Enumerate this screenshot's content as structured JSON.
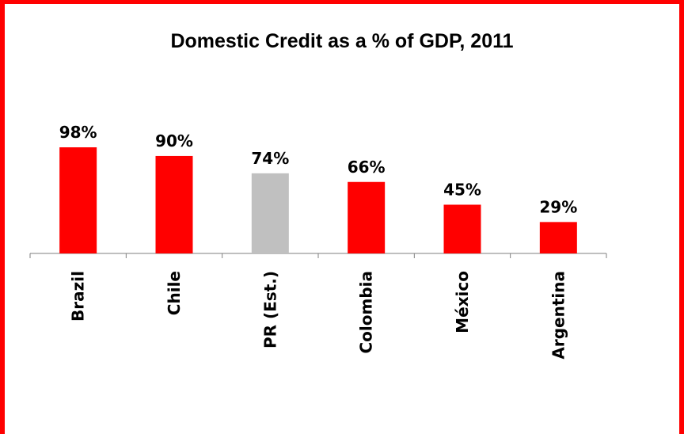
{
  "chart_data": {
    "type": "bar",
    "title": "Domestic Credit as a % of GDP, 2011",
    "xlabel": "",
    "ylabel": "",
    "categories": [
      "Brazil",
      "Chile",
      "PR (Est.)",
      "Colombia",
      "México",
      "Argentina"
    ],
    "values": [
      98,
      90,
      74,
      66,
      45,
      29
    ],
    "data_labels": [
      "98%",
      "90%",
      "74%",
      "66%",
      "45%",
      "29%"
    ],
    "bar_colors": [
      "#ff0000",
      "#ff0000",
      "#c0c0c0",
      "#ff0000",
      "#ff0000",
      "#ff0000"
    ],
    "ylim": [
      0,
      100
    ],
    "grid": false,
    "legend": "none"
  },
  "colors": {
    "frame": "#ff0000",
    "accent": "#ff0000",
    "highlight": "#c0c0c0"
  }
}
